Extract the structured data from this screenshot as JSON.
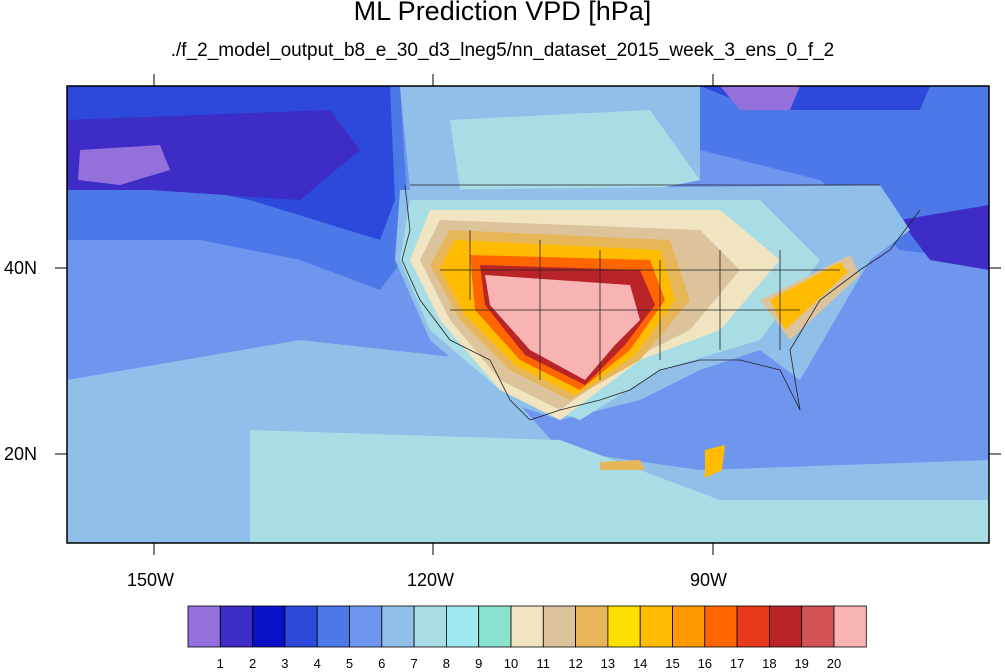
{
  "title": "ML Prediction VPD [hPa]",
  "subtitle": "./f_2_model_output_b8_e_30_d3_lneg5/nn_dataset_2015_week_3_ens_0_f_2",
  "axes": {
    "x_ticks": [
      "150W",
      "120W",
      "90W"
    ],
    "y_ticks": [
      "40N",
      "20N"
    ]
  },
  "colorbar": {
    "labels": [
      "1",
      "2",
      "3",
      "4",
      "5",
      "6",
      "7",
      "8",
      "9",
      "10",
      "11",
      "12",
      "13",
      "14",
      "15",
      "16",
      "17",
      "18",
      "19",
      "20"
    ],
    "colors": [
      "#9370db",
      "#3d2cc6",
      "#0a10c8",
      "#2c49db",
      "#4d78e8",
      "#6f96ee",
      "#90bfe9",
      "#a8dde6",
      "#9fe9f0",
      "#8be3cf",
      "#f1e4c0",
      "#dcc39c",
      "#e6b659",
      "#fde000",
      "#ffbb00",
      "#ff9900",
      "#ff6600",
      "#e8391c",
      "#b82428",
      "#d25454",
      "#f8b3b3"
    ]
  },
  "chart_data": {
    "type": "heatmap",
    "title": "ML Prediction VPD [hPa]",
    "subtitle": "./f_2_model_output_b8_e_30_d3_lneg5/nn_dataset_2015_week_3_ens_0_f_2",
    "lon_range": [
      -160,
      -62
    ],
    "lat_range": [
      10,
      59
    ],
    "x_tick_labels": [
      "150W",
      "120W",
      "90W"
    ],
    "y_tick_labels": [
      "40N",
      "20N"
    ],
    "levels": [
      1,
      2,
      3,
      4,
      5,
      6,
      7,
      8,
      9,
      10,
      11,
      12,
      13,
      14,
      15,
      16,
      17,
      18,
      19,
      20
    ],
    "max_region": "southwestern United States (values above 20 hPa)",
    "min_region": "northern Pacific and North Atlantic (values near 1-3 hPa)"
  }
}
